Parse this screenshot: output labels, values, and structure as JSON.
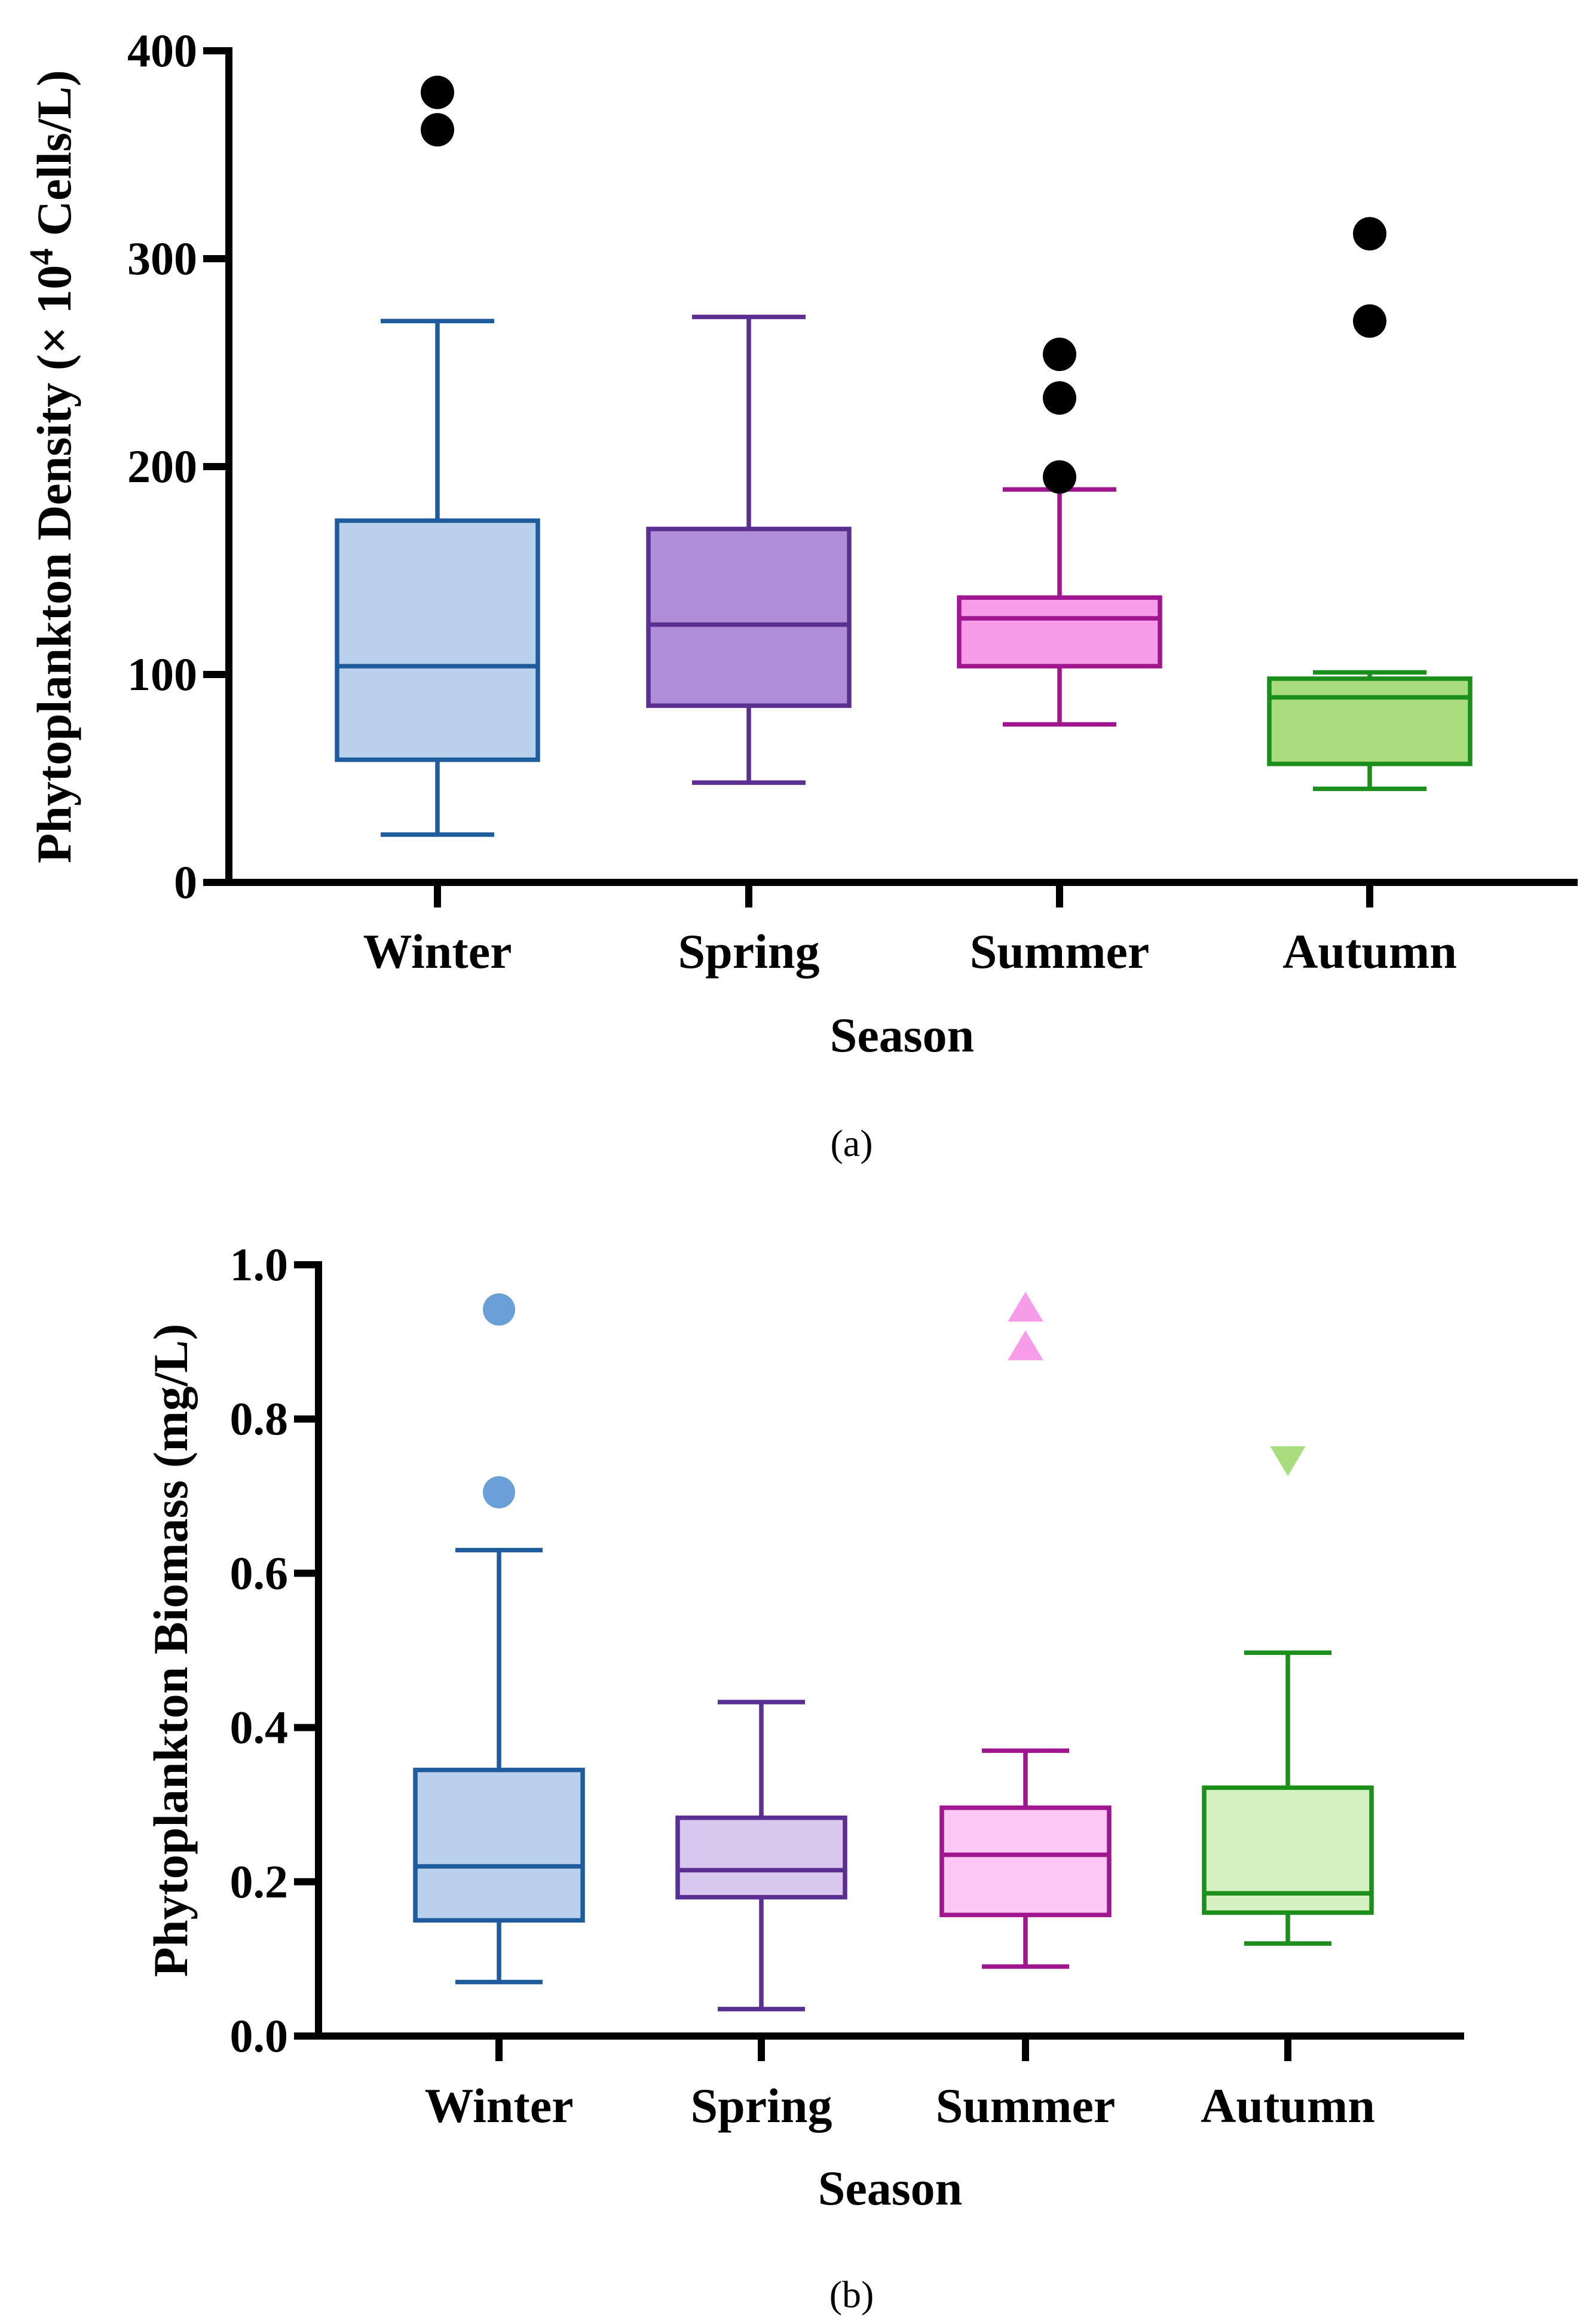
{
  "chart_data": [
    {
      "type": "box",
      "panel_label": "(a)",
      "xlabel": "Season",
      "ylabel": "Phytoplankton Density (× 10",
      "ylabel_superscript": "4",
      "ylabel_suffix": " Cells/L)",
      "ylim": [
        0,
        400
      ],
      "yticks": [
        0,
        100,
        200,
        300,
        400
      ],
      "categories": [
        "Winter",
        "Spring",
        "Summer",
        "Autumn"
      ],
      "boxes": [
        {
          "name": "Winter",
          "whisker_low": 23,
          "q1": 59,
          "median": 104,
          "q3": 174,
          "whisker_high": 270,
          "outliers": [
            362,
            380
          ],
          "outlier_marker": "circle",
          "outlier_color": "#000000",
          "stroke": "#1f5c9e",
          "fill": "#b9d1ec"
        },
        {
          "name": "Spring",
          "whisker_low": 48,
          "q1": 85,
          "median": 124,
          "q3": 170,
          "whisker_high": 272,
          "outliers": [],
          "outlier_marker": "circle",
          "outlier_color": "#000000",
          "stroke": "#5b2e91",
          "fill": "#af8ed7"
        },
        {
          "name": "Summer",
          "whisker_low": 76,
          "q1": 104,
          "median": 127,
          "q3": 137,
          "whisker_high": 189,
          "outliers": [
            195,
            233,
            254
          ],
          "outlier_marker": "circle",
          "outlier_color": "#000000",
          "stroke": "#a0168f",
          "fill": "#f79ce8"
        },
        {
          "name": "Autumn",
          "whisker_low": 45,
          "q1": 57,
          "median": 89,
          "q3": 98,
          "whisker_high": 101,
          "outliers": [
            270,
            312
          ],
          "outlier_marker": "circle",
          "outlier_color": "#000000",
          "stroke": "#1b8e1b",
          "fill": "#a8dc7c"
        }
      ]
    },
    {
      "type": "box",
      "panel_label": "(b)",
      "xlabel": "Season",
      "ylabel": "Phytoplankton Biomass (mg/L)",
      "ylim": [
        0,
        1.0
      ],
      "yticks": [
        "0.0",
        "0.2",
        "0.4",
        "0.6",
        "0.8",
        "1.0"
      ],
      "categories": [
        "Winter",
        "Spring",
        "Summer",
        "Autumn"
      ],
      "boxes": [
        {
          "name": "Winter",
          "whisker_low": 0.07,
          "q1": 0.15,
          "median": 0.22,
          "q3": 0.345,
          "whisker_high": 0.63,
          "outliers": [
            0.705,
            0.942
          ],
          "outlier_marker": "circle",
          "outlier_color": "#6b9fd8",
          "stroke": "#1f5c9e",
          "fill": "#b9d1ec"
        },
        {
          "name": "Spring",
          "whisker_low": 0.035,
          "q1": 0.18,
          "median": 0.215,
          "q3": 0.283,
          "whisker_high": 0.433,
          "outliers": [],
          "outlier_marker": "circle",
          "outlier_color": "#af8ed7",
          "stroke": "#5b2e91",
          "fill": "#d9c8ee"
        },
        {
          "name": "Summer",
          "whisker_low": 0.09,
          "q1": 0.157,
          "median": 0.235,
          "q3": 0.296,
          "whisker_high": 0.37,
          "outliers": [
            0.893,
            0.943
          ],
          "outlier_marker": "triangle-up",
          "outlier_color": "#f79ce8",
          "stroke": "#a0168f",
          "fill": "#fcc8f3"
        },
        {
          "name": "Autumn",
          "whisker_low": 0.12,
          "q1": 0.16,
          "median": 0.185,
          "q3": 0.322,
          "whisker_high": 0.497,
          "outliers": [
            0.748
          ],
          "outlier_marker": "triangle-down",
          "outlier_color": "#a8dc7c",
          "stroke": "#1b8e1b",
          "fill": "#d6f1c1"
        }
      ]
    }
  ]
}
